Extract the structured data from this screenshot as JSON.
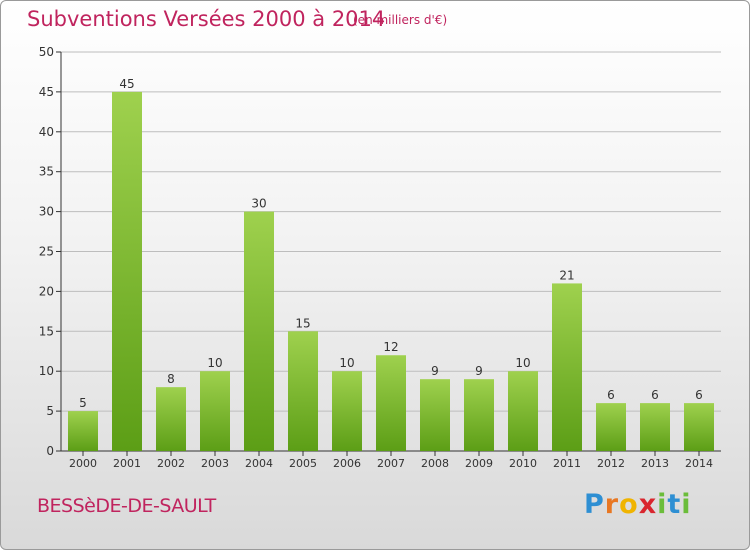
{
  "header": {
    "title": "Subventions Versées 2000 à 2014",
    "subtitle": "(en milliers d'€)"
  },
  "footer": {
    "commune": "BESSèDE-DE-SAULT",
    "logo_letters": [
      "P",
      "r",
      "o",
      "x",
      "i",
      "t",
      "i"
    ],
    "logo_colors": [
      "#2e8fd3",
      "#e87722",
      "#f0b400",
      "#d9262e",
      "#6bbd3a",
      "#2e8fd3",
      "#6bbd3a"
    ]
  },
  "colors": {
    "title": "#c0245e",
    "bar_top": "#9fd14e",
    "bar_bottom": "#5c9e16",
    "axis": "#333333",
    "grid": "#bdbdbd"
  },
  "chart_data": {
    "type": "bar",
    "title": "Subventions Versées 2000 à 2014",
    "subtitle": "(en milliers d'€)",
    "categories": [
      "2000",
      "2001",
      "2002",
      "2003",
      "2004",
      "2005",
      "2006",
      "2007",
      "2008",
      "2009",
      "2010",
      "2011",
      "2012",
      "2013",
      "2014"
    ],
    "values": [
      5,
      45,
      8,
      10,
      30,
      15,
      10,
      12,
      9,
      9,
      10,
      21,
      6,
      6,
      6
    ],
    "ylim": [
      0,
      50
    ],
    "yticks": [
      0,
      5,
      10,
      15,
      20,
      25,
      30,
      35,
      40,
      45,
      50
    ],
    "grid": true,
    "legend": "none",
    "xlabel": "",
    "ylabel": ""
  }
}
